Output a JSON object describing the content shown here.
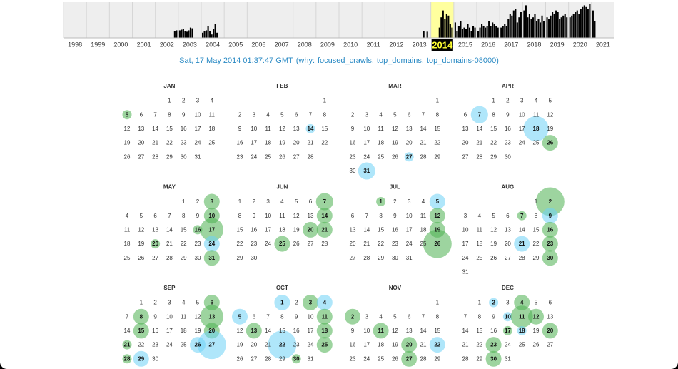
{
  "timeline": {
    "selected": "2014",
    "years": [
      {
        "label": "1998",
        "months": [
          0,
          0,
          0,
          0,
          0,
          0,
          0,
          0,
          0,
          0,
          0,
          0
        ]
      },
      {
        "label": "1999",
        "months": [
          0,
          0,
          0,
          0,
          0,
          0,
          0,
          0,
          0,
          0,
          0,
          0
        ]
      },
      {
        "label": "2000",
        "months": [
          0,
          0,
          0,
          0,
          0,
          0,
          0,
          0,
          0,
          0,
          0,
          0
        ]
      },
      {
        "label": "2001",
        "months": [
          0,
          0,
          0,
          0,
          0,
          0,
          0,
          0,
          0,
          0,
          0,
          0
        ]
      },
      {
        "label": "2002",
        "months": [
          0,
          0,
          0,
          0,
          0,
          0,
          0,
          0,
          0,
          0,
          20,
          22
        ]
      },
      {
        "label": "2003",
        "months": [
          22,
          24,
          26,
          20,
          18,
          22,
          30,
          28,
          0,
          0,
          0,
          0
        ]
      },
      {
        "label": "2004",
        "months": [
          15,
          20,
          22,
          35,
          20,
          10,
          25,
          40,
          15,
          0,
          0,
          0
        ]
      },
      {
        "label": "2005",
        "months": [
          0,
          0,
          0,
          0,
          0,
          0,
          0,
          0,
          0,
          0,
          0,
          0
        ]
      },
      {
        "label": "2006",
        "months": [
          0,
          0,
          0,
          0,
          0,
          0,
          0,
          0,
          0,
          0,
          0,
          0
        ]
      },
      {
        "label": "2007",
        "months": [
          0,
          0,
          0,
          0,
          0,
          0,
          0,
          0,
          0,
          0,
          0,
          0
        ]
      },
      {
        "label": "2008",
        "months": [
          0,
          0,
          0,
          0,
          0,
          0,
          0,
          0,
          0,
          0,
          0,
          0
        ]
      },
      {
        "label": "2009",
        "months": [
          0,
          0,
          0,
          0,
          0,
          0,
          0,
          0,
          0,
          0,
          0,
          0
        ]
      },
      {
        "label": "2010",
        "months": [
          0,
          0,
          0,
          0,
          0,
          0,
          0,
          0,
          0,
          0,
          0,
          0
        ]
      },
      {
        "label": "2011",
        "months": [
          0,
          0,
          0,
          0,
          0,
          0,
          0,
          0,
          0,
          0,
          0,
          0
        ]
      },
      {
        "label": "2012",
        "months": [
          0,
          0,
          0,
          0,
          0,
          0,
          0,
          0,
          0,
          0,
          0,
          0
        ]
      },
      {
        "label": "2013",
        "months": [
          0,
          0,
          0,
          0,
          0,
          0,
          0,
          0,
          20,
          0,
          18,
          0
        ]
      },
      {
        "label": "2014",
        "months": [
          0,
          0,
          0,
          0,
          30,
          60,
          80,
          55,
          70,
          65,
          40,
          30
        ]
      },
      {
        "label": "2015",
        "months": [
          45,
          20,
          35,
          50,
          25,
          30,
          25,
          40,
          30,
          20,
          35,
          30
        ]
      },
      {
        "label": "2016",
        "months": [
          20,
          30,
          40,
          35,
          30,
          35,
          50,
          35,
          45,
          40,
          35,
          30
        ]
      },
      {
        "label": "2017",
        "months": [
          30,
          35,
          40,
          35,
          55,
          70,
          65,
          80,
          85,
          45,
          60,
          75
        ]
      },
      {
        "label": "2018",
        "months": [
          80,
          95,
          60,
          70,
          55,
          60,
          70,
          50,
          55,
          45,
          65,
          50
        ]
      },
      {
        "label": "2019",
        "months": [
          60,
          55,
          65,
          75,
          70,
          80,
          75,
          55,
          60,
          65,
          70,
          60
        ]
      },
      {
        "label": "2020",
        "months": [
          60,
          65,
          70,
          75,
          80,
          70,
          85,
          90,
          95,
          90,
          85,
          100
        ]
      },
      {
        "label": "2021",
        "months": [
          80,
          50,
          0,
          0,
          0,
          0,
          0,
          0,
          0,
          0,
          0,
          0
        ]
      }
    ],
    "bar_color": "#000000",
    "highlight": "#ffff9e"
  },
  "header": {
    "timestamp": "Sat, 17 May 2014 01:37:47 GMT",
    "why_prefix": "(why:",
    "reasons": [
      "focused_crawls",
      "top_domains",
      "top_domains-08000"
    ],
    "separator": ",",
    "closing": ")"
  },
  "calendar": {
    "colors": {
      "green": "#4cb050",
      "blue": "#6ed2f5"
    },
    "months": [
      {
        "name": "JAN",
        "days": [
          1,
          2,
          3,
          4,
          5,
          6,
          7,
          8,
          9,
          10,
          11,
          12,
          13,
          14,
          15,
          16,
          17,
          18,
          19,
          20,
          21,
          22,
          23,
          24,
          25,
          26,
          27,
          28,
          29,
          30,
          31
        ],
        "captures": [
          {
            "day": 5,
            "count": 1,
            "color": "green"
          }
        ]
      },
      {
        "name": "FEB",
        "days": [
          1,
          2,
          3,
          4,
          5,
          6,
          7,
          8,
          9,
          10,
          11,
          12,
          13,
          14,
          15,
          16,
          17,
          18,
          19,
          20,
          21,
          22,
          23,
          24,
          25,
          26,
          27,
          28
        ],
        "captures": [
          {
            "day": 14,
            "count": 1,
            "color": "blue"
          }
        ]
      },
      {
        "name": "MAR",
        "days": [
          1,
          2,
          3,
          4,
          5,
          6,
          7,
          8,
          9,
          10,
          11,
          12,
          13,
          14,
          15,
          16,
          17,
          18,
          19,
          20,
          21,
          22,
          23,
          24,
          25,
          26,
          27,
          28,
          29,
          30,
          31
        ],
        "captures": [
          {
            "day": 27,
            "count": 1,
            "color": "blue"
          },
          {
            "day": 31,
            "count": 5,
            "color": "blue"
          }
        ]
      },
      {
        "name": "APR",
        "days": [
          1,
          2,
          3,
          4,
          5,
          6,
          7,
          8,
          9,
          10,
          11,
          12,
          13,
          14,
          15,
          16,
          17,
          18,
          19,
          20,
          21,
          22,
          23,
          24,
          25,
          26,
          27,
          28,
          29,
          30
        ],
        "captures": [
          {
            "day": 7,
            "count": 5,
            "color": "blue"
          },
          {
            "day": 18,
            "count": 12,
            "color": "blue"
          },
          {
            "day": 26,
            "count": 4,
            "color": "green"
          }
        ]
      },
      {
        "name": "MAY",
        "days": [
          1,
          2,
          3,
          4,
          5,
          6,
          7,
          8,
          9,
          10,
          11,
          12,
          13,
          14,
          15,
          16,
          17,
          18,
          19,
          20,
          21,
          22,
          23,
          24,
          25,
          26,
          27,
          28,
          29,
          30,
          31
        ],
        "captures": [
          {
            "day": 3,
            "count": 4,
            "color": "green"
          },
          {
            "day": 10,
            "count": 4,
            "color": "green"
          },
          {
            "day": 16,
            "count": 1,
            "color": "green"
          },
          {
            "day": 17,
            "count": 10,
            "color": "green"
          },
          {
            "day": 20,
            "count": 1,
            "color": "green"
          },
          {
            "day": 24,
            "count": 4,
            "color": "blue"
          },
          {
            "day": 31,
            "count": 4,
            "color": "green"
          }
        ]
      },
      {
        "name": "JUN",
        "days": [
          1,
          2,
          3,
          4,
          5,
          6,
          7,
          8,
          9,
          10,
          11,
          12,
          13,
          14,
          15,
          16,
          17,
          18,
          19,
          20,
          21,
          22,
          23,
          24,
          25,
          26,
          27,
          28,
          29,
          30
        ],
        "captures": [
          {
            "day": 7,
            "count": 5,
            "color": "green"
          },
          {
            "day": 14,
            "count": 4,
            "color": "green"
          },
          {
            "day": 20,
            "count": 4,
            "color": "green"
          },
          {
            "day": 21,
            "count": 4,
            "color": "green"
          },
          {
            "day": 25,
            "count": 4,
            "color": "green"
          }
        ]
      },
      {
        "name": "JUL",
        "days": [
          1,
          2,
          3,
          4,
          5,
          6,
          7,
          8,
          9,
          10,
          11,
          12,
          13,
          14,
          15,
          16,
          17,
          18,
          19,
          20,
          21,
          22,
          23,
          24,
          25,
          26,
          27,
          28,
          29,
          30,
          31
        ],
        "captures": [
          {
            "day": 1,
            "count": 1,
            "color": "green"
          },
          {
            "day": 5,
            "count": 4,
            "color": "blue"
          },
          {
            "day": 12,
            "count": 4,
            "color": "green"
          },
          {
            "day": 19,
            "count": 4,
            "color": "green"
          },
          {
            "day": 26,
            "count": 16,
            "color": "green"
          }
        ]
      },
      {
        "name": "AUG",
        "days": [
          1,
          2,
          3,
          4,
          5,
          6,
          7,
          8,
          9,
          10,
          11,
          12,
          13,
          14,
          15,
          16,
          17,
          18,
          19,
          20,
          21,
          22,
          23,
          24,
          25,
          26,
          27,
          28,
          29,
          30,
          31
        ],
        "captures": [
          {
            "day": 2,
            "count": 16,
            "color": "green"
          },
          {
            "day": 7,
            "count": 1,
            "color": "green"
          },
          {
            "day": 9,
            "count": 4,
            "color": "blue"
          },
          {
            "day": 16,
            "count": 4,
            "color": "green"
          },
          {
            "day": 21,
            "count": 4,
            "color": "blue"
          },
          {
            "day": 23,
            "count": 4,
            "color": "green"
          },
          {
            "day": 30,
            "count": 4,
            "color": "green"
          }
        ]
      },
      {
        "name": "SEP",
        "days": [
          1,
          2,
          3,
          4,
          5,
          6,
          7,
          8,
          9,
          10,
          11,
          12,
          13,
          14,
          15,
          16,
          17,
          18,
          19,
          20,
          21,
          22,
          23,
          24,
          25,
          26,
          27,
          28,
          29,
          30
        ],
        "captures": [
          {
            "day": 6,
            "count": 4,
            "color": "green"
          },
          {
            "day": 8,
            "count": 4,
            "color": "green"
          },
          {
            "day": 13,
            "count": 10,
            "color": "green"
          },
          {
            "day": 15,
            "count": 4,
            "color": "green"
          },
          {
            "day": 20,
            "count": 4,
            "color": "green"
          },
          {
            "day": 21,
            "count": 1,
            "color": "green"
          },
          {
            "day": 26,
            "count": 4,
            "color": "blue"
          },
          {
            "day": 27,
            "count": 16,
            "color": "blue"
          },
          {
            "day": 28,
            "count": 1,
            "color": "green"
          },
          {
            "day": 29,
            "count": 4,
            "color": "blue"
          }
        ]
      },
      {
        "name": "OCT",
        "days": [
          1,
          2,
          3,
          4,
          5,
          6,
          7,
          8,
          9,
          10,
          11,
          12,
          13,
          14,
          15,
          16,
          17,
          18,
          19,
          20,
          21,
          22,
          23,
          24,
          25,
          26,
          27,
          28,
          29,
          30,
          31
        ],
        "captures": [
          {
            "day": 1,
            "count": 4,
            "color": "blue"
          },
          {
            "day": 3,
            "count": 4,
            "color": "green"
          },
          {
            "day": 4,
            "count": 4,
            "color": "blue"
          },
          {
            "day": 5,
            "count": 4,
            "color": "blue"
          },
          {
            "day": 11,
            "count": 4,
            "color": "green"
          },
          {
            "day": 13,
            "count": 4,
            "color": "green"
          },
          {
            "day": 18,
            "count": 4,
            "color": "green"
          },
          {
            "day": 22,
            "count": 16,
            "color": "blue"
          },
          {
            "day": 25,
            "count": 4,
            "color": "green"
          },
          {
            "day": 30,
            "count": 1,
            "color": "green"
          }
        ]
      },
      {
        "name": "NOV",
        "days": [
          1,
          2,
          3,
          4,
          5,
          6,
          7,
          8,
          9,
          10,
          11,
          12,
          13,
          14,
          15,
          16,
          17,
          18,
          19,
          20,
          21,
          22,
          23,
          24,
          25,
          26,
          27,
          28,
          29,
          30
        ],
        "captures": [
          {
            "day": 2,
            "count": 4,
            "color": "green"
          },
          {
            "day": 11,
            "count": 4,
            "color": "green"
          },
          {
            "day": 20,
            "count": 4,
            "color": "green"
          },
          {
            "day": 22,
            "count": 4,
            "color": "blue"
          },
          {
            "day": 27,
            "count": 4,
            "color": "green"
          }
        ]
      },
      {
        "name": "DEC",
        "days": [
          1,
          2,
          3,
          4,
          5,
          6,
          7,
          8,
          9,
          10,
          11,
          12,
          13,
          14,
          15,
          16,
          17,
          18,
          19,
          20,
          21,
          22,
          23,
          24,
          25,
          26,
          27,
          28,
          29,
          30,
          31
        ],
        "captures": [
          {
            "day": 2,
            "count": 1,
            "color": "blue"
          },
          {
            "day": 4,
            "count": 4,
            "color": "green"
          },
          {
            "day": 10,
            "count": 1,
            "color": "blue"
          },
          {
            "day": 11,
            "count": 9,
            "color": "green"
          },
          {
            "day": 12,
            "count": 4,
            "color": "green"
          },
          {
            "day": 17,
            "count": 1,
            "color": "green"
          },
          {
            "day": 18,
            "count": 1,
            "color": "blue"
          },
          {
            "day": 20,
            "count": 4,
            "color": "green"
          },
          {
            "day": 23,
            "count": 4,
            "color": "green"
          },
          {
            "day": 30,
            "count": 4,
            "color": "green"
          }
        ]
      }
    ]
  }
}
